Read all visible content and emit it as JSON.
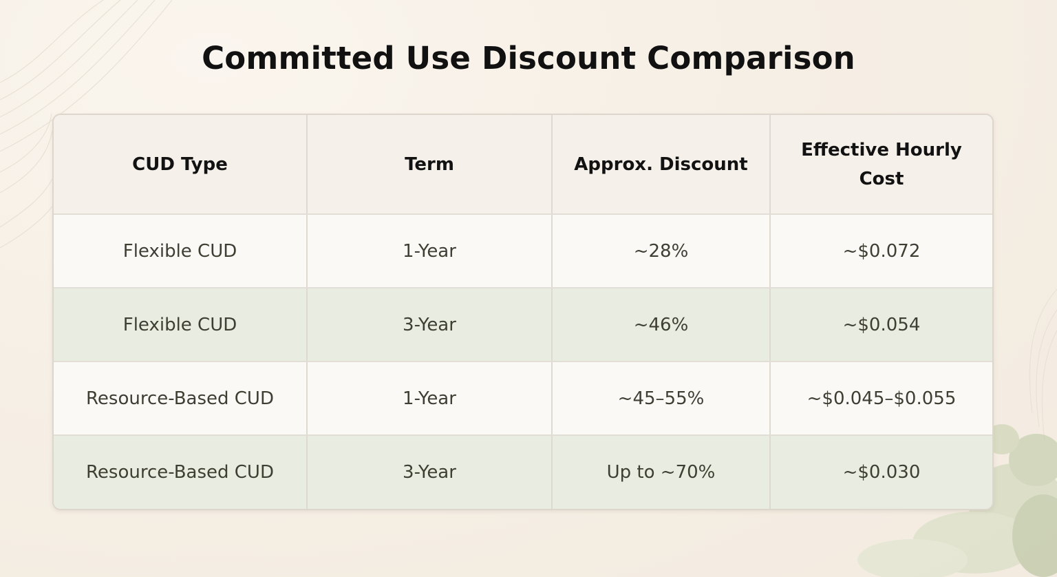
{
  "title": "Committed Use Discount Comparison",
  "table": {
    "headers": [
      "CUD Type",
      "Term",
      "Approx. Discount",
      "Effective Hourly Cost"
    ],
    "rows": [
      [
        "Flexible CUD",
        "1-Year",
        "~28%",
        "~$0.072"
      ],
      [
        "Flexible CUD",
        "3-Year",
        "~46%",
        "~$0.054"
      ],
      [
        "Resource-Based CUD",
        "1-Year",
        "~45–55%",
        "~$0.045–$0.055"
      ],
      [
        "Resource-Based CUD",
        "3-Year",
        "Up to ~70%",
        "~$0.030"
      ]
    ]
  },
  "colors": {
    "background": "#f6efe5",
    "header_bg": "#f5f1ea",
    "row_light": "#fbf9f6",
    "row_green": "#e9ece0",
    "text": "#3e3e33"
  }
}
